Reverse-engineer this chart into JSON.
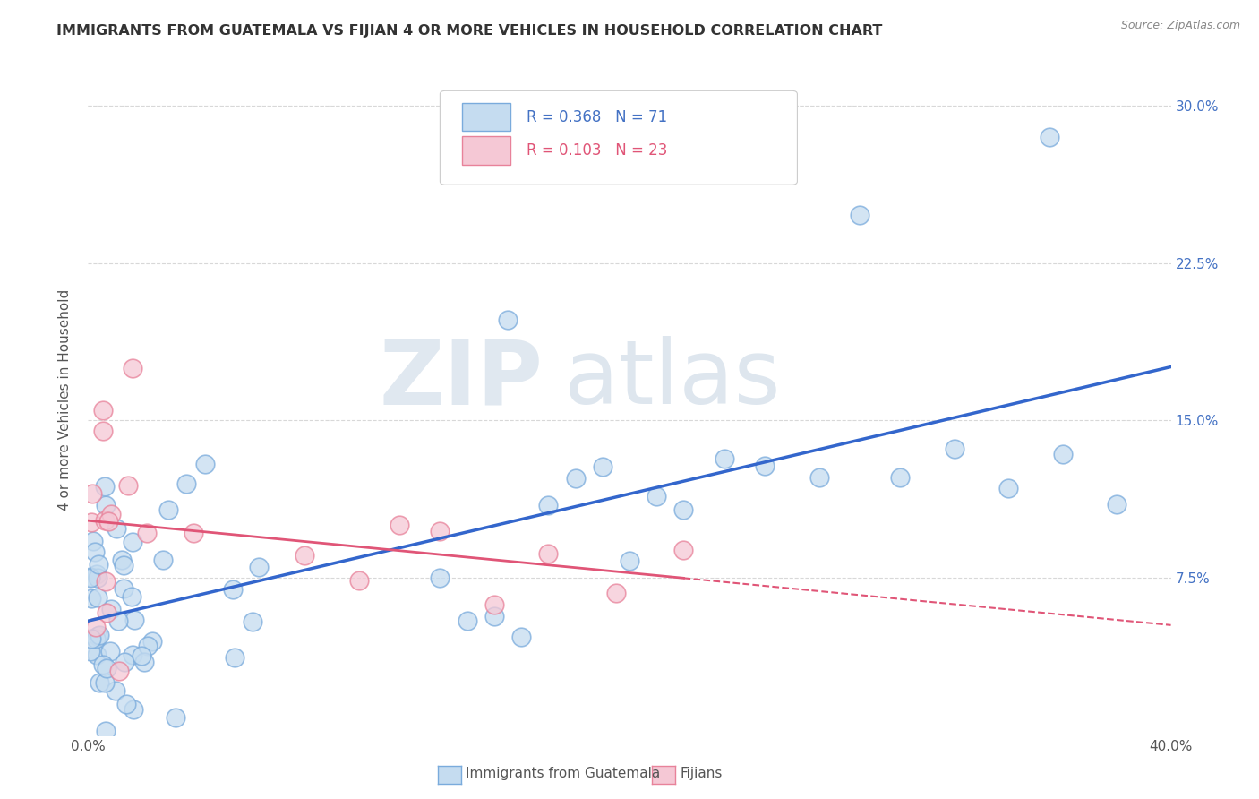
{
  "title": "IMMIGRANTS FROM GUATEMALA VS FIJIAN 4 OR MORE VEHICLES IN HOUSEHOLD CORRELATION CHART",
  "source": "Source: ZipAtlas.com",
  "ylabel": "4 or more Vehicles in Household",
  "xlim": [
    0.0,
    0.4
  ],
  "ylim": [
    0.0,
    0.32
  ],
  "xticks": [
    0.0,
    0.1,
    0.2,
    0.3,
    0.4
  ],
  "xticklabels": [
    "0.0%",
    "",
    "",
    "",
    "40.0%"
  ],
  "yticks": [
    0.0,
    0.075,
    0.15,
    0.225,
    0.3
  ],
  "yticklabels_right": [
    "",
    "7.5%",
    "15.0%",
    "22.5%",
    "30.0%"
  ],
  "legend_labels": [
    "Immigrants from Guatemala",
    "Fijians"
  ],
  "R_guatemala": 0.368,
  "N_guatemala": 71,
  "R_fijian": 0.103,
  "N_fijian": 23,
  "color_guatemala": "#c5dcf0",
  "color_fijian": "#f5c8d5",
  "edge_guatemala": "#7aabdc",
  "edge_fijian": "#e8829a",
  "trendline_guatemala_color": "#3366cc",
  "trendline_fijian_color": "#e05577",
  "trendline_dash_color": "#e05577",
  "background_color": "#ffffff",
  "grid_color": "#d8d8d8",
  "title_color": "#333333",
  "ytick_color": "#4472c4"
}
